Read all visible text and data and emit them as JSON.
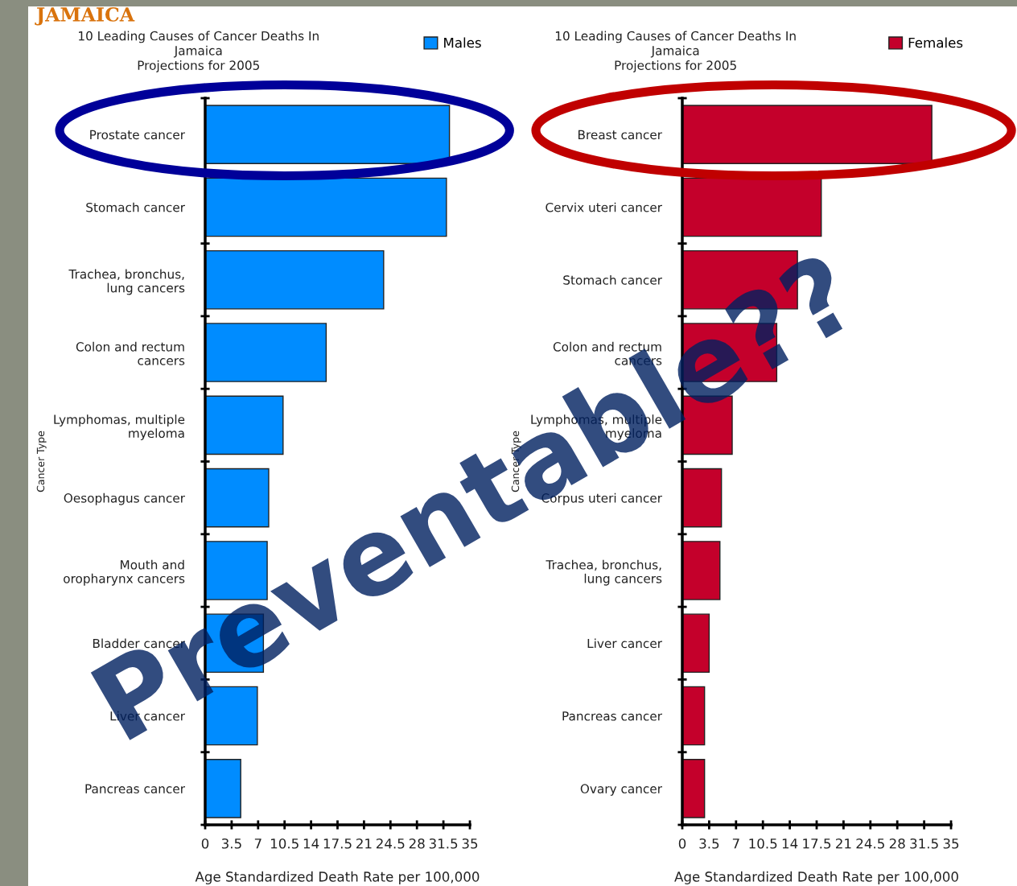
{
  "chart_data": [
    {
      "type": "bar",
      "orientation": "horizontal",
      "title": "10 Leading Causes of Cancer Deaths In\nJamaica\nProjections for 2005",
      "xlabel": "Age Standardized Death Rate per 100,000",
      "ylabel": "Cancer Type",
      "categories": [
        "Prostate cancer",
        "Stomach cancer",
        "Trachea, bronchus,\nlung cancers",
        "Colon and rectum\ncancers",
        "Lymphomas, multiple\nmyeloma",
        "Oesophagus cancer",
        "Mouth and\noropharynx cancers",
        "Bladder cancer",
        "Liver cancer",
        "Pancreas cancer"
      ],
      "series": [
        {
          "name": "Males",
          "color": "#008cff",
          "values": [
            32.3,
            31.9,
            23.6,
            16.0,
            10.3,
            8.4,
            8.2,
            7.7,
            6.9,
            4.7
          ]
        }
      ],
      "xlim": [
        0,
        35
      ],
      "xticks": [
        0,
        3.5,
        7,
        10.5,
        14,
        17.5,
        21,
        24.5,
        28,
        31.5,
        35
      ],
      "grid": false,
      "legend": "top right",
      "annotations": [
        "JAMAICA",
        "Preventable??"
      ]
    },
    {
      "type": "bar",
      "orientation": "horizontal",
      "title": "10 Leading Causes of Cancer Deaths In\nJamaica\nProjections for 2005",
      "xlabel": "Age Standardized Death Rate per 100,000",
      "ylabel": "Cancer Type",
      "categories": [
        "Breast cancer",
        "Cervix uteri cancer",
        "Stomach cancer",
        "Colon and rectum\ncancers",
        "Lymphomas, multiple\nmyeloma",
        "Corpus uteri cancer",
        "Trachea, bronchus,\nlung cancers",
        "Liver cancer",
        "Pancreas cancer",
        "Ovary cancer"
      ],
      "series": [
        {
          "name": "Females",
          "color": "#c4002b",
          "values": [
            32.5,
            18.1,
            15.0,
            12.3,
            6.5,
            5.1,
            4.9,
            3.5,
            2.9,
            2.9
          ]
        }
      ],
      "xlim": [
        0,
        35
      ],
      "xticks": [
        0,
        3.5,
        7,
        10.5,
        14,
        17.5,
        21,
        24.5,
        28,
        31.5,
        35
      ],
      "grid": false,
      "legend": "top right"
    }
  ]
}
